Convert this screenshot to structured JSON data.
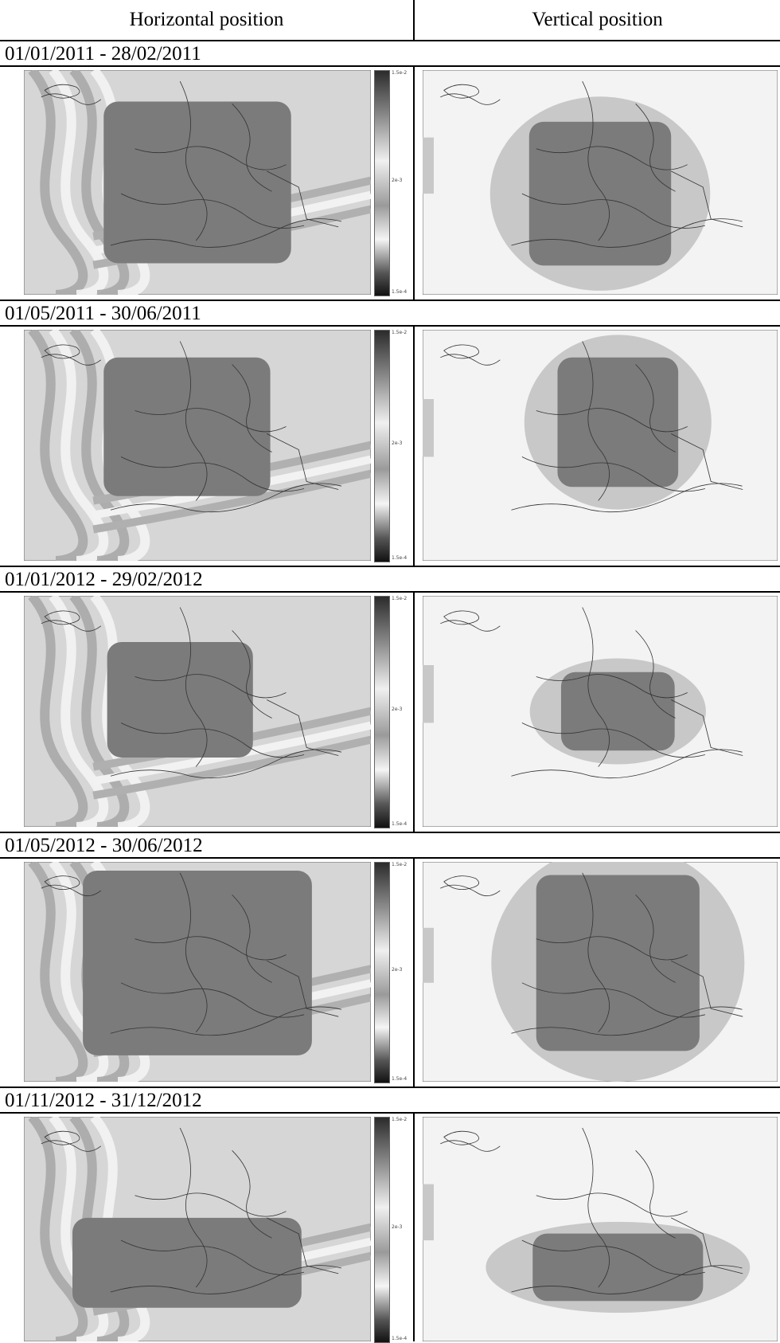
{
  "header": {
    "left": "Horizontal position",
    "right": "Vertical position"
  },
  "colorbar": {
    "top": "1.5e-2",
    "mid": "2e-3",
    "bottom": "1.5e-4"
  },
  "colors": {
    "map_low": "#f3f3f3",
    "map_mid": "#c8c8c8",
    "map_high": "#7b7b7b",
    "border": "#000000"
  },
  "periods": [
    {
      "label": "01/01/2011 - 28/02/2011"
    },
    {
      "label": "01/05/2011 - 30/06/2011"
    },
    {
      "label": "01/01/2012 - 29/02/2012"
    },
    {
      "label": "01/05/2012 - 30/06/2012"
    },
    {
      "label": "01/11/2012 - 31/12/2012"
    }
  ]
}
